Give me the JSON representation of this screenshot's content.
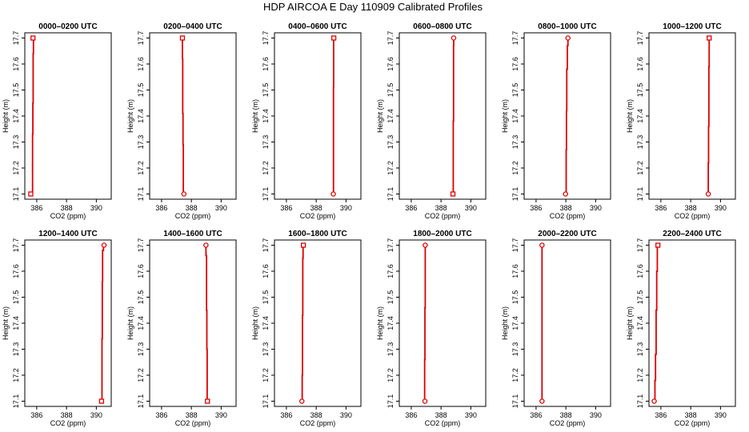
{
  "figure": {
    "title": "HDP AIRCOA E  Day 110909  Calibrated Profiles"
  },
  "chart_data": [
    {
      "type": "line",
      "title": "0000–0200 UTC",
      "xlabel": "CO2 (ppm)",
      "ylabel": "Height (m)",
      "xlim": [
        385.2,
        391.0
      ],
      "ylim": [
        17.08,
        17.72
      ],
      "xticks": [
        386,
        388,
        390
      ],
      "yticks": [
        17.1,
        17.2,
        17.3,
        17.4,
        17.5,
        17.6,
        17.7
      ],
      "series": [
        {
          "x": [
            385.72,
            385.72,
            385.74,
            385.74,
            385.76,
            385.76,
            385.78,
            385.78
          ],
          "y": [
            17.1,
            17.33,
            17.33,
            17.45,
            17.45,
            17.64,
            17.64,
            17.7
          ]
        }
      ],
      "markers": [
        {
          "x": 385.6,
          "y": 17.1,
          "shape": "square"
        },
        {
          "x": 385.75,
          "y": 17.7,
          "shape": "square"
        }
      ]
    },
    {
      "type": "line",
      "title": "0200–0400 UTC",
      "xlabel": "CO2 (ppm)",
      "ylabel": "Height (m)",
      "xlim": [
        385.2,
        391.0
      ],
      "ylim": [
        17.08,
        17.72
      ],
      "xticks": [
        386,
        388,
        390
      ],
      "yticks": [
        17.1,
        17.2,
        17.3,
        17.4,
        17.5,
        17.6,
        17.7
      ],
      "series": [
        {
          "x": [
            387.46,
            387.46,
            387.44,
            387.44,
            387.42,
            387.42,
            387.4,
            387.4
          ],
          "y": [
            17.1,
            17.29,
            17.29,
            17.41,
            17.41,
            17.62,
            17.62,
            17.7
          ]
        }
      ],
      "markers": [
        {
          "x": 387.5,
          "y": 17.1,
          "shape": "circle"
        },
        {
          "x": 387.4,
          "y": 17.7,
          "shape": "square"
        }
      ]
    },
    {
      "type": "line",
      "title": "0400–0600 UTC",
      "xlabel": "CO2 (ppm)",
      "ylabel": "Height (m)",
      "xlim": [
        385.2,
        391.0
      ],
      "ylim": [
        17.08,
        17.72
      ],
      "xticks": [
        386,
        388,
        390
      ],
      "yticks": [
        17.1,
        17.2,
        17.3,
        17.4,
        17.5,
        17.6,
        17.7
      ],
      "series": [
        {
          "x": [
            389.16,
            389.16,
            389.17,
            389.17
          ],
          "y": [
            17.1,
            17.51,
            17.51,
            17.7
          ]
        }
      ],
      "markers": [
        {
          "x": 389.15,
          "y": 17.1,
          "shape": "circle"
        },
        {
          "x": 389.18,
          "y": 17.7,
          "shape": "square"
        }
      ]
    },
    {
      "type": "line",
      "title": "0600–0800 UTC",
      "xlabel": "CO2 (ppm)",
      "ylabel": "Height (m)",
      "xlim": [
        385.2,
        391.0
      ],
      "ylim": [
        17.08,
        17.72
      ],
      "xticks": [
        386,
        388,
        390
      ],
      "yticks": [
        17.1,
        17.2,
        17.3,
        17.4,
        17.5,
        17.6,
        17.7
      ],
      "series": [
        {
          "x": [
            388.82,
            388.82,
            388.84,
            388.84,
            388.85,
            388.85
          ],
          "y": [
            17.1,
            17.38,
            17.38,
            17.67,
            17.67,
            17.7
          ]
        }
      ],
      "markers": [
        {
          "x": 388.8,
          "y": 17.1,
          "shape": "square"
        },
        {
          "x": 388.85,
          "y": 17.7,
          "shape": "circle"
        }
      ]
    },
    {
      "type": "line",
      "title": "0800–1000 UTC",
      "xlabel": "CO2 (ppm)",
      "ylabel": "Height (m)",
      "xlim": [
        385.2,
        391.0
      ],
      "ylim": [
        17.08,
        17.72
      ],
      "xticks": [
        386,
        388,
        390
      ],
      "yticks": [
        17.1,
        17.2,
        17.3,
        17.4,
        17.5,
        17.6,
        17.7
      ],
      "series": [
        {
          "x": [
            388.02,
            388.02,
            388.04,
            388.04,
            388.06,
            388.06,
            388.1,
            388.1,
            388.14,
            388.14
          ],
          "y": [
            17.1,
            17.27,
            17.27,
            17.42,
            17.42,
            17.58,
            17.58,
            17.67,
            17.67,
            17.7
          ]
        }
      ],
      "markers": [
        {
          "x": 387.98,
          "y": 17.1,
          "shape": "circle"
        },
        {
          "x": 388.14,
          "y": 17.7,
          "shape": "circle"
        }
      ]
    },
    {
      "type": "line",
      "title": "1000–1200 UTC",
      "xlabel": "CO2 (ppm)",
      "ylabel": "Height (m)",
      "xlim": [
        385.2,
        391.0
      ],
      "ylim": [
        17.08,
        17.72
      ],
      "xticks": [
        386,
        388,
        390
      ],
      "yticks": [
        17.1,
        17.2,
        17.3,
        17.4,
        17.5,
        17.6,
        17.7
      ],
      "series": [
        {
          "x": [
            389.18,
            389.18,
            389.2,
            389.2,
            389.22,
            389.22,
            389.24,
            389.24
          ],
          "y": [
            17.1,
            17.22,
            17.22,
            17.36,
            17.36,
            17.59,
            17.59,
            17.7
          ]
        }
      ],
      "markers": [
        {
          "x": 389.18,
          "y": 17.1,
          "shape": "circle"
        },
        {
          "x": 389.24,
          "y": 17.7,
          "shape": "square"
        }
      ]
    },
    {
      "type": "line",
      "title": "1200–1400 UTC",
      "xlabel": "CO2 (ppm)",
      "ylabel": "Height (m)",
      "xlim": [
        385.2,
        391.0
      ],
      "ylim": [
        17.08,
        17.72
      ],
      "xticks": [
        386,
        388,
        390
      ],
      "yticks": [
        17.1,
        17.2,
        17.3,
        17.4,
        17.5,
        17.6,
        17.7
      ],
      "series": [
        {
          "x": [
            390.38,
            390.38,
            390.4,
            390.4,
            390.42,
            390.42,
            390.48,
            390.48
          ],
          "y": [
            17.1,
            17.34,
            17.34,
            17.56,
            17.56,
            17.68,
            17.68,
            17.7
          ]
        }
      ],
      "markers": [
        {
          "x": 390.35,
          "y": 17.1,
          "shape": "square"
        },
        {
          "x": 390.52,
          "y": 17.7,
          "shape": "circle"
        }
      ]
    },
    {
      "type": "line",
      "title": "1400–1600 UTC",
      "xlabel": "CO2 (ppm)",
      "ylabel": "Height (m)",
      "xlim": [
        385.2,
        391.0
      ],
      "ylim": [
        17.08,
        17.72
      ],
      "xticks": [
        386,
        388,
        390
      ],
      "yticks": [
        17.1,
        17.2,
        17.3,
        17.4,
        17.5,
        17.6,
        17.7
      ],
      "series": [
        {
          "x": [
            389.06,
            389.06,
            389.04,
            389.04,
            389.02,
            389.02,
            388.98,
            388.98
          ],
          "y": [
            17.1,
            17.3,
            17.3,
            17.45,
            17.45,
            17.66,
            17.66,
            17.7
          ]
        }
      ],
      "markers": [
        {
          "x": 389.08,
          "y": 17.1,
          "shape": "square"
        },
        {
          "x": 388.98,
          "y": 17.7,
          "shape": "circle"
        }
      ]
    },
    {
      "type": "line",
      "title": "1600–1800 UTC",
      "xlabel": "CO2 (ppm)",
      "ylabel": "Height (m)",
      "xlim": [
        385.2,
        391.0
      ],
      "ylim": [
        17.08,
        17.72
      ],
      "xticks": [
        386,
        388,
        390
      ],
      "yticks": [
        17.1,
        17.2,
        17.3,
        17.4,
        17.5,
        17.6,
        17.7
      ],
      "series": [
        {
          "x": [
            387.06,
            387.06,
            387.08,
            387.08,
            387.1,
            387.1,
            387.12,
            387.12
          ],
          "y": [
            17.1,
            17.2,
            17.2,
            17.43,
            17.43,
            17.65,
            17.65,
            17.7
          ]
        }
      ],
      "markers": [
        {
          "x": 387.04,
          "y": 17.1,
          "shape": "circle"
        },
        {
          "x": 387.14,
          "y": 17.7,
          "shape": "square"
        }
      ]
    },
    {
      "type": "line",
      "title": "1800–2000 UTC",
      "xlabel": "CO2 (ppm)",
      "ylabel": "Height (m)",
      "xlim": [
        385.2,
        391.0
      ],
      "ylim": [
        17.08,
        17.72
      ],
      "xticks": [
        386,
        388,
        390
      ],
      "yticks": [
        17.1,
        17.2,
        17.3,
        17.4,
        17.5,
        17.6,
        17.7
      ],
      "series": [
        {
          "x": [
            386.9,
            386.9,
            386.92,
            386.92,
            386.94,
            386.94
          ],
          "y": [
            17.1,
            17.26,
            17.26,
            17.46,
            17.46,
            17.7
          ]
        }
      ],
      "markers": [
        {
          "x": 386.92,
          "y": 17.1,
          "shape": "circle"
        },
        {
          "x": 386.94,
          "y": 17.7,
          "shape": "circle"
        }
      ]
    },
    {
      "type": "line",
      "title": "2000–2200 UTC",
      "xlabel": "CO2 (ppm)",
      "ylabel": "Height (m)",
      "xlim": [
        385.2,
        391.0
      ],
      "ylim": [
        17.08,
        17.72
      ],
      "xticks": [
        386,
        388,
        390
      ],
      "yticks": [
        17.1,
        17.2,
        17.3,
        17.4,
        17.5,
        17.6,
        17.7
      ],
      "series": [
        {
          "x": [
            386.4,
            386.4,
            386.4
          ],
          "y": [
            17.1,
            17.4,
            17.7
          ]
        }
      ],
      "markers": [
        {
          "x": 386.4,
          "y": 17.1,
          "shape": "circle"
        },
        {
          "x": 386.4,
          "y": 17.7,
          "shape": "circle"
        }
      ]
    },
    {
      "type": "line",
      "title": "2200–2400 UTC",
      "xlabel": "CO2 (ppm)",
      "ylabel": "Height (m)",
      "xlim": [
        385.2,
        391.0
      ],
      "ylim": [
        17.08,
        17.72
      ],
      "xticks": [
        386,
        388,
        390
      ],
      "yticks": [
        17.1,
        17.2,
        17.3,
        17.4,
        17.5,
        17.6,
        17.7
      ],
      "series": [
        {
          "x": [
            385.6,
            385.6,
            385.64,
            385.64,
            385.68,
            385.68,
            385.72,
            385.72,
            385.76,
            385.76
          ],
          "y": [
            17.1,
            17.18,
            17.18,
            17.28,
            17.28,
            17.45,
            17.45,
            17.6,
            17.6,
            17.7
          ]
        }
      ],
      "markers": [
        {
          "x": 385.55,
          "y": 17.1,
          "shape": "circle"
        },
        {
          "x": 385.8,
          "y": 17.7,
          "shape": "square"
        }
      ]
    }
  ],
  "style": {
    "line_color": "#dd0000",
    "marker_color": "#dd0000",
    "axis_color": "#000000"
  }
}
